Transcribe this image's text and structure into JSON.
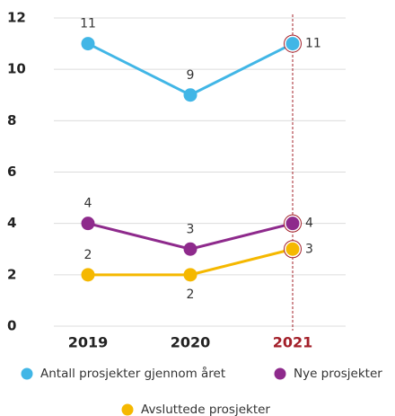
{
  "chart_data": {
    "type": "line",
    "categories": [
      "2019",
      "2020",
      "2021"
    ],
    "series": [
      {
        "name": "Antall prosjekter gjennom året",
        "color": "#41b6e6",
        "values": [
          11,
          9,
          11
        ]
      },
      {
        "name": "Nye prosjekter",
        "color": "#8e2a8c",
        "values": [
          4,
          3,
          4
        ]
      },
      {
        "name": "Avsluttede prosjekter",
        "color": "#f5b800",
        "values": [
          2,
          2,
          3
        ]
      }
    ],
    "ylim": [
      0,
      12
    ],
    "yticks": [
      0,
      2,
      4,
      6,
      8,
      10,
      12
    ],
    "grid": true
  }
}
